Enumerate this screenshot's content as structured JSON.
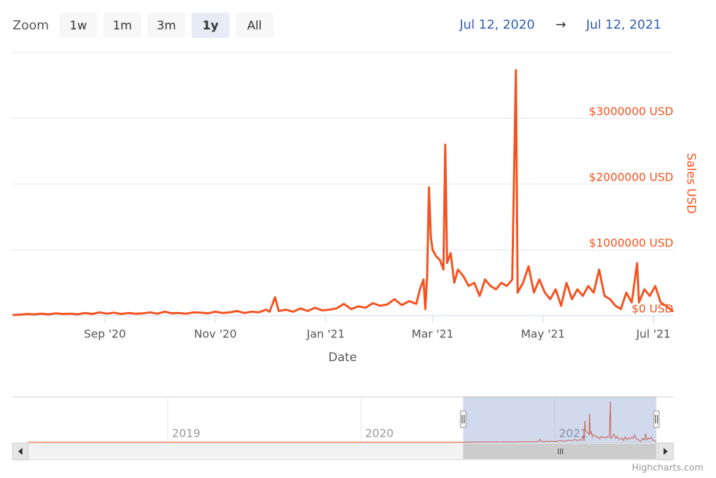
{
  "chart_data": {
    "type": "line",
    "zoom_label": "Zoom",
    "zoom_buttons": [
      "1w",
      "1m",
      "3m",
      "1y",
      "All"
    ],
    "zoom_selected": "1y",
    "range_from": "Jul 12, 2020",
    "range_arrow": "→",
    "range_to": "Jul 12, 2021",
    "x_label": "Date",
    "y_label": "Sales USD",
    "credits": "Highcharts.com",
    "color": "#f4511e",
    "grid": true,
    "x": [
      "2020-07-12",
      "2020-07-16",
      "2020-07-20",
      "2020-07-24",
      "2020-07-28",
      "2020-08-01",
      "2020-08-05",
      "2020-08-09",
      "2020-08-13",
      "2020-08-17",
      "2020-08-21",
      "2020-08-25",
      "2020-08-29",
      "2020-09-02",
      "2020-09-06",
      "2020-09-10",
      "2020-09-14",
      "2020-09-18",
      "2020-09-22",
      "2020-09-26",
      "2020-09-30",
      "2020-10-04",
      "2020-10-08",
      "2020-10-12",
      "2020-10-16",
      "2020-10-20",
      "2020-10-24",
      "2020-10-28",
      "2020-11-01",
      "2020-11-05",
      "2020-11-09",
      "2020-11-13",
      "2020-11-17",
      "2020-11-21",
      "2020-11-25",
      "2020-11-29",
      "2020-12-01",
      "2020-12-04",
      "2020-12-06",
      "2020-12-10",
      "2020-12-14",
      "2020-12-18",
      "2020-12-22",
      "2020-12-26",
      "2020-12-30",
      "2021-01-03",
      "2021-01-07",
      "2021-01-11",
      "2021-01-15",
      "2021-01-19",
      "2021-01-23",
      "2021-01-27",
      "2021-01-31",
      "2021-02-04",
      "2021-02-08",
      "2021-02-12",
      "2021-02-16",
      "2021-02-20",
      "2021-02-22",
      "2021-02-24",
      "2021-02-25",
      "2021-02-26",
      "2021-02-27",
      "2021-02-28",
      "2021-03-01",
      "2021-03-03",
      "2021-03-05",
      "2021-03-07",
      "2021-03-08",
      "2021-03-09",
      "2021-03-11",
      "2021-03-13",
      "2021-03-15",
      "2021-03-18",
      "2021-03-21",
      "2021-03-24",
      "2021-03-27",
      "2021-03-30",
      "2021-04-02",
      "2021-04-05",
      "2021-04-08",
      "2021-04-11",
      "2021-04-14",
      "2021-04-16",
      "2021-04-17",
      "2021-04-20",
      "2021-04-23",
      "2021-04-26",
      "2021-04-29",
      "2021-05-02",
      "2021-05-05",
      "2021-05-08",
      "2021-05-11",
      "2021-05-14",
      "2021-05-17",
      "2021-05-20",
      "2021-05-23",
      "2021-05-26",
      "2021-05-29",
      "2021-06-01",
      "2021-06-04",
      "2021-06-07",
      "2021-06-10",
      "2021-06-13",
      "2021-06-16",
      "2021-06-19",
      "2021-06-22",
      "2021-06-23",
      "2021-06-26",
      "2021-06-29",
      "2021-07-02",
      "2021-07-05",
      "2021-07-08",
      "2021-07-12"
    ],
    "values": [
      10000,
      15000,
      25000,
      20000,
      30000,
      20000,
      35000,
      25000,
      30000,
      20000,
      40000,
      25000,
      50000,
      30000,
      45000,
      25000,
      40000,
      30000,
      35000,
      50000,
      30000,
      60000,
      35000,
      40000,
      30000,
      50000,
      45000,
      35000,
      60000,
      40000,
      50000,
      70000,
      40000,
      60000,
      50000,
      90000,
      60000,
      280000,
      70000,
      90000,
      60000,
      110000,
      70000,
      120000,
      80000,
      90000,
      110000,
      180000,
      100000,
      140000,
      120000,
      190000,
      150000,
      170000,
      250000,
      160000,
      220000,
      180000,
      400000,
      550000,
      100000,
      600000,
      1950000,
      1200000,
      1000000,
      900000,
      850000,
      700000,
      2600000,
      800000,
      950000,
      500000,
      700000,
      600000,
      450000,
      500000,
      300000,
      550000,
      450000,
      400000,
      500000,
      450000,
      550000,
      3730000,
      350000,
      500000,
      750000,
      350000,
      550000,
      350000,
      250000,
      400000,
      150000,
      500000,
      250000,
      400000,
      300000,
      450000,
      350000,
      700000,
      300000,
      250000,
      150000,
      100000,
      350000,
      200000,
      800000,
      200000,
      400000,
      300000,
      450000,
      200000,
      150000,
      60000
    ],
    "xlim": [
      "2020-07-12",
      "2021-07-12"
    ],
    "xticks": [
      {
        "value": "2020-09-01",
        "label": "Sep '20"
      },
      {
        "value": "2020-11-01",
        "label": "Nov '20"
      },
      {
        "value": "2021-01-01",
        "label": "Jan '21"
      },
      {
        "value": "2021-03-01",
        "label": "Mar '21"
      },
      {
        "value": "2021-05-01",
        "label": "May '21"
      },
      {
        "value": "2021-07-01",
        "label": "Jul '21"
      }
    ],
    "ylim": [
      0,
      4000000
    ],
    "yticks": [
      {
        "value": 0,
        "label": "$0 USD"
      },
      {
        "value": 1000000,
        "label": "$1000000 USD"
      },
      {
        "value": 2000000,
        "label": "$2000000 USD"
      },
      {
        "value": 3000000,
        "label": "$3000000 USD"
      }
    ],
    "navigator": {
      "xlim": [
        "2018-03-14",
        "2021-08-13"
      ],
      "xticks": [
        {
          "value": "2019-01-01",
          "label": "2019"
        },
        {
          "value": "2020-01-01",
          "label": "2020"
        },
        {
          "value": "2021-01-01",
          "label": "2021"
        }
      ]
    }
  }
}
